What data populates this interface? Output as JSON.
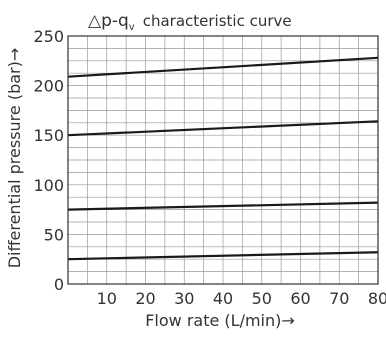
{
  "chart_data": {
    "type": "line",
    "title_symbol": "△p-q",
    "title_subscript": "v",
    "title_rest": "characteristic curve",
    "xlabel": "Flow rate (L/min)→",
    "ylabel": "Differential pressure (bar)→",
    "xlim": [
      0,
      80
    ],
    "ylim": [
      0,
      250
    ],
    "x_ticks": [
      10,
      20,
      30,
      40,
      50,
      60,
      70,
      80
    ],
    "y_ticks": [
      0,
      50,
      100,
      150,
      200,
      250
    ],
    "x_tick_labels": [
      "10",
      "20",
      "30",
      "40",
      "50",
      "60",
      "70",
      "80"
    ],
    "y_tick_labels": [
      "0",
      "50",
      "100",
      "150",
      "200",
      "250"
    ],
    "grid": true,
    "series": [
      {
        "x": [
          0,
          80
        ],
        "y": [
          25,
          32
        ]
      },
      {
        "x": [
          0,
          80
        ],
        "y": [
          75,
          82
        ]
      },
      {
        "x": [
          0,
          80
        ],
        "y": [
          150,
          164
        ]
      },
      {
        "x": [
          0,
          80
        ],
        "y": [
          209,
          228
        ]
      }
    ],
    "line_color": "#1a1a1a",
    "grid_color": "#9a9a9a",
    "axis_color": "#333333"
  }
}
